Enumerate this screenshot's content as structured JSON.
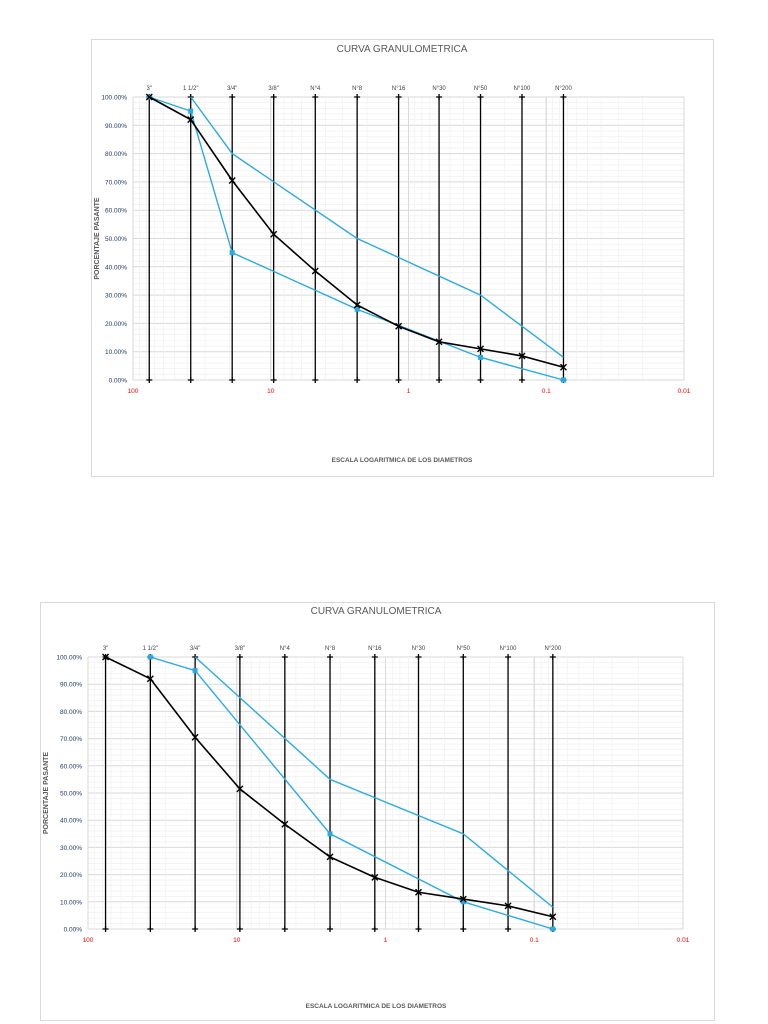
{
  "colors": {
    "gradation": "#000000",
    "limits": "#29abe2",
    "grid": "#d9d9d9",
    "xtick": "#ff0000",
    "ytick": "#1f3864",
    "sieve_label": "#404040"
  },
  "chart_data": [
    {
      "type": "line",
      "title": "CURVA GRANULOMETRICA",
      "xlabel": "ESCALA LOGARITMICA DE LOS DIAMETROS",
      "ylabel": "PORCENTAJE PASANTE",
      "xscale": "log",
      "xlim": [
        100,
        0.01
      ],
      "ylim": [
        0,
        100
      ],
      "grid": true,
      "x_ticks": [
        "100",
        "10",
        "1",
        "0.1",
        "0.01"
      ],
      "y_ticks": [
        "0.00%",
        "10.00%",
        "20.00%",
        "30.00%",
        "40.00%",
        "50.00%",
        "60.00%",
        "70.00%",
        "80.00%",
        "90.00%",
        "100.00%"
      ],
      "sieves": [
        {
          "label": "3\"",
          "mm": 76.2
        },
        {
          "label": "1 1/2\"",
          "mm": 38.1
        },
        {
          "label": "3/4\"",
          "mm": 19.05
        },
        {
          "label": "3/8\"",
          "mm": 9.525
        },
        {
          "label": "N°4",
          "mm": 4.75
        },
        {
          "label": "N°8",
          "mm": 2.36
        },
        {
          "label": "N°16",
          "mm": 1.18
        },
        {
          "label": "N°30",
          "mm": 0.6
        },
        {
          "label": "N°50",
          "mm": 0.3
        },
        {
          "label": "N°100",
          "mm": 0.15
        },
        {
          "label": "N°200",
          "mm": 0.075
        }
      ],
      "series": [
        {
          "name": "upper-limit",
          "x": [
            38.1,
            19.05,
            2.36,
            0.3,
            0.075
          ],
          "y": [
            100,
            80,
            50,
            30,
            8
          ]
        },
        {
          "name": "lower-limit",
          "x": [
            76.2,
            38.1,
            19.05,
            2.36,
            0.3,
            0.075
          ],
          "y": [
            100,
            95,
            45,
            25,
            8,
            0
          ]
        },
        {
          "name": "gradation",
          "x": [
            76.2,
            38.1,
            19.05,
            9.525,
            4.75,
            2.36,
            1.18,
            0.6,
            0.3,
            0.15,
            0.075
          ],
          "y": [
            100,
            92,
            70.5,
            51.5,
            38.5,
            26.5,
            19,
            13.5,
            11,
            8.5,
            4.5
          ]
        }
      ]
    },
    {
      "type": "line",
      "title": "CURVA GRANULOMETRICA",
      "xlabel": "ESCALA LOGARITMICA DE LOS DIAMETROS",
      "ylabel": "PORCENTAJE PASANTE",
      "xscale": "log",
      "xlim": [
        100,
        0.01
      ],
      "ylim": [
        0,
        100
      ],
      "grid": true,
      "x_ticks": [
        "100",
        "10",
        "1",
        "0.1",
        "0.01"
      ],
      "y_ticks": [
        "0.00%",
        "10.00%",
        "20.00%",
        "30.00%",
        "40.00%",
        "50.00%",
        "60.00%",
        "70.00%",
        "80.00%",
        "90.00%",
        "100.00%"
      ],
      "sieves": [
        {
          "label": "3\"",
          "mm": 76.2
        },
        {
          "label": "1 1/2\"",
          "mm": 38.1
        },
        {
          "label": "3/4\"",
          "mm": 19.05
        },
        {
          "label": "3/8\"",
          "mm": 9.525
        },
        {
          "label": "N°4",
          "mm": 4.75
        },
        {
          "label": "N°8",
          "mm": 2.36
        },
        {
          "label": "N°16",
          "mm": 1.18
        },
        {
          "label": "N°30",
          "mm": 0.6
        },
        {
          "label": "N°50",
          "mm": 0.3
        },
        {
          "label": "N°100",
          "mm": 0.15
        },
        {
          "label": "N°200",
          "mm": 0.075
        }
      ],
      "series": [
        {
          "name": "upper-limit",
          "x": [
            19.05,
            2.36,
            0.3,
            0.075
          ],
          "y": [
            100,
            55,
            35,
            8
          ]
        },
        {
          "name": "lower-limit",
          "x": [
            38.1,
            19.05,
            2.36,
            0.3,
            0.075
          ],
          "y": [
            100,
            95,
            35,
            10,
            0
          ]
        },
        {
          "name": "gradation",
          "x": [
            76.2,
            38.1,
            19.05,
            9.525,
            4.75,
            2.36,
            1.18,
            0.6,
            0.3,
            0.15,
            0.075
          ],
          "y": [
            100,
            92,
            70.5,
            51.5,
            38.5,
            26.5,
            19,
            13.5,
            11,
            8.5,
            4.5
          ]
        }
      ]
    }
  ]
}
